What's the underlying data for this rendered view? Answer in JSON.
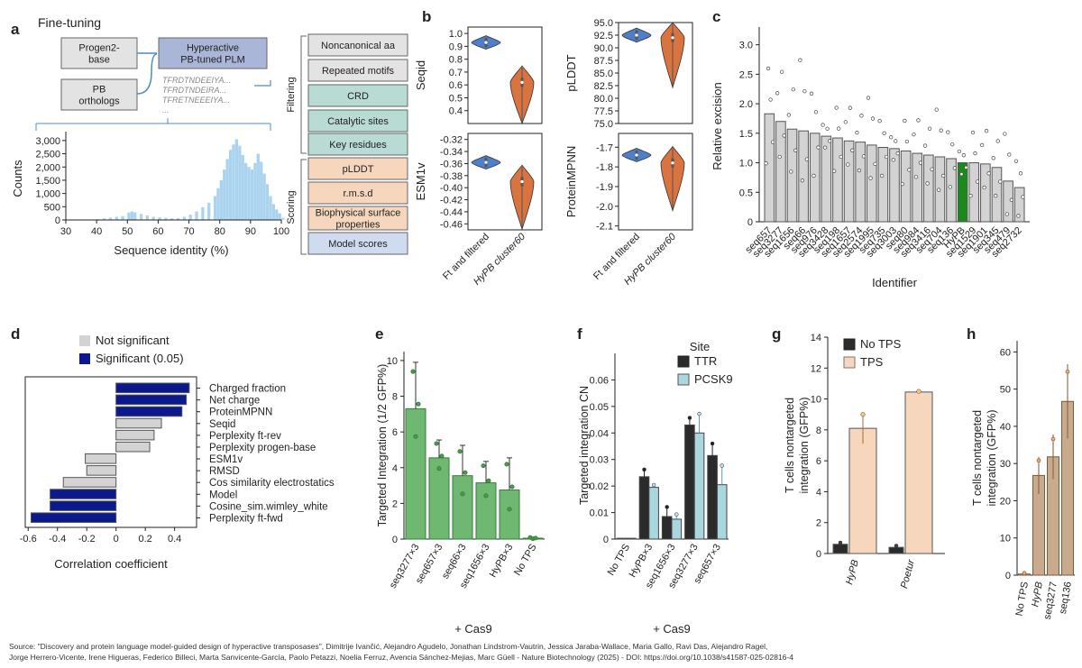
{
  "panel_labels": {
    "a": "a",
    "b": "b",
    "c": "c",
    "d": "d",
    "e": "e",
    "f": "f",
    "g": "g",
    "h": "h"
  },
  "panel_a": {
    "title": "Fine-tuning",
    "box_progen2": [
      "Progen2-",
      "base"
    ],
    "box_orthologs": [
      "PB",
      "orthologs"
    ],
    "box_plm": [
      "Hyperactive",
      "PB-tuned PLM"
    ],
    "sequences": [
      "TFRDTNDEEIYA...",
      "TFRDTNDEIRA...",
      "TFRETNEEEIYA...",
      "..."
    ],
    "filter_label": "Filtering",
    "scoring_label": "Scoring",
    "filter_boxes": [
      "Noncanonical aa",
      "Repeated motifs",
      "CRD",
      "Catalytic sites",
      "Key residues"
    ],
    "scoring_boxes": [
      "pLDDT",
      "r.m.s.d",
      "Biophysical surface",
      "properties",
      "Model scores"
    ],
    "hist_xlabel": "Sequence identity (%)",
    "hist_ylabel": "Counts"
  },
  "chart_data": [
    {
      "id": "a-hist",
      "type": "bar",
      "title": "",
      "xlabel": "Sequence identity (%)",
      "ylabel": "Counts",
      "xlim": [
        30,
        100
      ],
      "ylim": [
        0,
        3200
      ],
      "xticks": [
        "30",
        "40",
        "50",
        "60",
        "70",
        "80",
        "90",
        "100"
      ],
      "yticks": [
        "0",
        "500",
        "1,000",
        "1,500",
        "2,000",
        "2,500",
        "3,000"
      ],
      "bins": [
        [
          40,
          30
        ],
        [
          42,
          60
        ],
        [
          44,
          90
        ],
        [
          46,
          120
        ],
        [
          48,
          150
        ],
        [
          50,
          280
        ],
        [
          51,
          320
        ],
        [
          52,
          290
        ],
        [
          54,
          230
        ],
        [
          56,
          170
        ],
        [
          58,
          120
        ],
        [
          60,
          100
        ],
        [
          62,
          80
        ],
        [
          64,
          60
        ],
        [
          66,
          70
        ],
        [
          68,
          120
        ],
        [
          70,
          200
        ],
        [
          72,
          320
        ],
        [
          74,
          480
        ],
        [
          76,
          650
        ],
        [
          78,
          900
        ],
        [
          79,
          1200
        ],
        [
          80,
          1500
        ],
        [
          81,
          1900
        ],
        [
          82,
          2300
        ],
        [
          83,
          2650
        ],
        [
          84,
          2850
        ],
        [
          85,
          3050
        ],
        [
          86,
          2800
        ],
        [
          87,
          2450
        ],
        [
          88,
          2150
        ],
        [
          89,
          2000
        ],
        [
          90,
          1900
        ],
        [
          91,
          2150
        ],
        [
          92,
          2500
        ],
        [
          93,
          2200
        ],
        [
          94,
          1750
        ],
        [
          95,
          1350
        ],
        [
          96,
          900
        ],
        [
          97,
          600
        ],
        [
          98,
          400
        ],
        [
          99,
          250
        ],
        [
          100,
          80
        ]
      ]
    },
    {
      "id": "b-violins",
      "type": "violin",
      "categories": [
        "Ft and filtered",
        "HyPB cluster60"
      ],
      "panels": [
        {
          "name": "Seqid",
          "ylabel": "Seqid",
          "ylim": [
            0.3,
            1.05
          ],
          "yticks": [
            "0.4",
            "0.5",
            "0.6",
            "0.7",
            "0.8",
            "0.9",
            "1.0"
          ],
          "medians": [
            0.93,
            0.62
          ]
        },
        {
          "name": "pLDDT",
          "ylabel": "pLDDT",
          "ylim": [
            75,
            95
          ],
          "yticks": [
            "75.0",
            "77.5",
            "80.0",
            "82.5",
            "85.0",
            "87.5",
            "90.0",
            "92.5",
            "95.0"
          ],
          "medians": [
            92.5,
            92.0
          ]
        },
        {
          "name": "ESM1v",
          "ylabel": "ESM1v",
          "ylim": [
            -0.47,
            -0.31
          ],
          "yticks": [
            "-0.32",
            "-0.34",
            "-0.36",
            "-0.38",
            "-0.40",
            "-0.42",
            "-0.44",
            "-0.46"
          ],
          "medians": [
            -0.358,
            -0.39
          ]
        },
        {
          "name": "ProteinMPNN",
          "ylabel": "ProteinMPNN",
          "ylim": [
            -2.12,
            -1.63
          ],
          "yticks": [
            "-1.7",
            "-1.8",
            "-1.9",
            "-2.0",
            "-2.1"
          ],
          "medians": [
            -1.74,
            -1.78
          ]
        }
      ]
    },
    {
      "id": "c-bars",
      "type": "bar",
      "title": "",
      "xlabel": "Identifier",
      "ylabel": "Relative excision",
      "ylim": [
        0,
        3.3
      ],
      "yticks": [
        "0",
        "0.5",
        "1.0",
        "1.5",
        "2.0",
        "2.5",
        "3.0"
      ],
      "categories": [
        "seq657",
        "seq3277",
        "seq1656",
        "seq66",
        "seq976",
        "seq3428",
        "seq198",
        "seq1657",
        "seq2574",
        "seq1995",
        "seq735",
        "seq3003",
        "seq80",
        "seq984",
        "seq3416",
        "seq704",
        "seq136",
        "HyPB",
        "seq1529",
        "seq1901",
        "seq345",
        "seq479",
        "seq2732"
      ],
      "values": [
        1.83,
        1.7,
        1.57,
        1.54,
        1.5,
        1.45,
        1.42,
        1.37,
        1.35,
        1.3,
        1.26,
        1.24,
        1.2,
        1.16,
        1.13,
        1.1,
        1.07,
        1.0,
        1.0,
        0.98,
        0.92,
        0.69,
        0.58
      ],
      "highlight": "HyPB",
      "highlight_color": "#1a8a1a"
    },
    {
      "id": "d-bars",
      "type": "bar",
      "orientation": "horizontal",
      "xlabel": "Correlation coefficient",
      "xlim": [
        -0.62,
        0.55
      ],
      "xticks": [
        "-0.6",
        "-0.4",
        "-0.2",
        "0",
        "0.2",
        "0.4"
      ],
      "legend": [
        "Not significant",
        "Significant (0.05)"
      ],
      "categories": [
        "Charged fraction",
        "Net charge",
        "ProteinMPNN",
        "Seqid",
        "Perplexity ft-rev",
        "Perplexity progen-base",
        "ESM1v",
        "RMSD",
        "Cos similarity electrostatics",
        "Model",
        "Cosine_sim.wimley_white",
        "Perplexity ft-fwd"
      ],
      "values": [
        0.5,
        0.48,
        0.45,
        0.31,
        0.26,
        0.23,
        -0.21,
        -0.2,
        -0.36,
        -0.45,
        -0.45,
        -0.58
      ],
      "significant": [
        true,
        true,
        true,
        false,
        false,
        false,
        false,
        false,
        false,
        true,
        true,
        true
      ]
    },
    {
      "id": "e-bars",
      "type": "bar",
      "ylabel": "Targeted Integration (1/2 GFP%)",
      "xlabel": "+ Cas9",
      "ylim": [
        0,
        10.5
      ],
      "yticks": [
        "0",
        "2",
        "4",
        "6",
        "8",
        "10"
      ],
      "categories": [
        "seq3277×3",
        "seq657×3",
        "seq66×3",
        "seq1656×3",
        "HyPB×3",
        "No TPS"
      ],
      "values": [
        7.3,
        4.55,
        3.55,
        3.15,
        2.75,
        0.05
      ]
    },
    {
      "id": "f-bars",
      "type": "bar",
      "ylabel": "Targeted integration CN",
      "xlabel": "+ Cas9",
      "ylim": [
        0,
        0.07
      ],
      "yticks": [
        "0",
        "0.01",
        "0.02",
        "0.03",
        "0.04",
        "0.05",
        "0.06"
      ],
      "legend_title": "Site",
      "categories": [
        "No TPS",
        "HyPB×3",
        "seq1656×3",
        "seq3277×3",
        "seq657×3"
      ],
      "series": [
        {
          "name": "TTR",
          "values": [
            0.0003,
            0.0235,
            0.0085,
            0.043,
            0.0315
          ]
        },
        {
          "name": "PCSK9",
          "values": [
            0.0003,
            0.0195,
            0.0075,
            0.04,
            0.0205
          ]
        }
      ]
    },
    {
      "id": "g-bars",
      "type": "bar",
      "ylabel": "T cells nontargeted integration (GFP%)",
      "ylim": [
        0,
        14
      ],
      "yticks": [
        "0",
        "2",
        "4",
        "6",
        "8",
        "10",
        "12",
        "14"
      ],
      "categories": [
        "HyPB",
        "Poetur"
      ],
      "series": [
        {
          "name": "No TPS",
          "values": [
            0.6,
            0.4
          ]
        },
        {
          "name": "TPS",
          "values": [
            8.1,
            10.45
          ]
        }
      ]
    },
    {
      "id": "h-bars",
      "type": "bar",
      "ylabel": "T cells nontargeted integration (GFP%)",
      "ylim": [
        0,
        63
      ],
      "yticks": [
        "0",
        "10",
        "20",
        "30",
        "40",
        "50",
        "60"
      ],
      "categories": [
        "No TPS",
        "HyPB",
        "seq3277",
        "seq136"
      ],
      "values": [
        0.3,
        26.8,
        31.8,
        46.7
      ]
    }
  ],
  "source_text_1": "Source: \"Discovery and protein language model-guided design of hyperactive transposases\", Dimitrije Ivančić, Alejandro Agudelo, Jonathan Lindstrom-Vautrin, Jessica Jaraba-Wallace, Maria Gallo, Ravi Das, Alejandro Ragel,",
  "source_text_2": "Jorge Herrero-Vicente, Irene Higueras, Federico Billeci, Marta Sanvicente-García, Paolo Petazzi, Noelia Ferruz, Avencia Sánchez-Mejias, Marc Güell - Nature Biotechnology (2025) - DOI: https://doi.org/10.1038/s41587-025-02816-4",
  "colors": {
    "hist": "#a9d3ee",
    "violin_blue": "#4f7fc9",
    "violin_orange": "#d9733f",
    "grey_bar": "#d3d3d3",
    "green_bar": "#6fb872",
    "navy": "#0a1a8c",
    "dark": "#2b2b2b",
    "light_blue": "#a9d6df",
    "tan": "#c8ab8c",
    "peach": "#f6d7bd"
  }
}
